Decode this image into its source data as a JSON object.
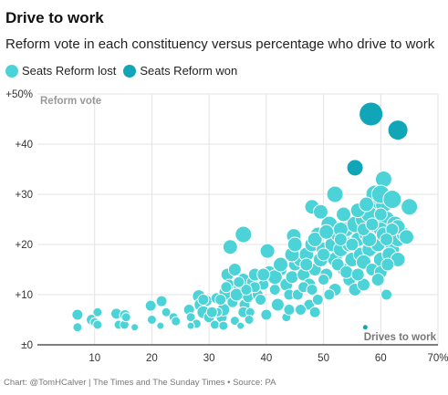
{
  "title": "Drive to work",
  "subtitle": "Reform vote in each constituency versus percentage who drive to work",
  "credit": "Chart: @TomHCalver | The Times and The Sunday Times • Source: PA",
  "colors": {
    "lost": "#4cd3d7",
    "won": "#10a6b8",
    "lost_stroke": "#ffffff",
    "grid": "#e3e3e3",
    "axis": "#333333"
  },
  "chart_data": {
    "type": "scatter",
    "ylabel": "Reform vote",
    "xlabel": "Drives to work",
    "xlim": [
      0,
      70
    ],
    "ylim": [
      0,
      50
    ],
    "xticks": [
      10,
      20,
      30,
      40,
      50,
      60,
      70
    ],
    "xtick_labels": [
      "10",
      "20",
      "30",
      "40",
      "50",
      "60",
      "70%"
    ],
    "yticks": [
      0,
      10,
      20,
      30,
      40,
      50
    ],
    "ytick_labels": [
      "±0",
      "+10",
      "+20",
      "+30",
      "+40",
      "+50%"
    ],
    "grid": "both",
    "legend_position": "top-left",
    "series": [
      {
        "name": "Seats Reform lost",
        "points": [
          [
            7,
            6,
            6
          ],
          [
            7,
            3.5,
            5
          ],
          [
            9.5,
            5,
            6
          ],
          [
            10,
            4.5,
            5
          ],
          [
            10.5,
            4,
            5
          ],
          [
            10.5,
            6.5,
            5
          ],
          [
            13.8,
            6.2,
            6
          ],
          [
            14.2,
            4,
            5
          ],
          [
            15.3,
            5.9,
            6
          ],
          [
            15.2,
            4,
            5
          ],
          [
            15.5,
            5.5,
            5
          ],
          [
            17,
            3.5,
            4
          ],
          [
            19.8,
            7.8,
            6
          ],
          [
            20,
            5,
            5
          ],
          [
            21.5,
            3.8,
            4
          ],
          [
            21.7,
            8.7,
            6
          ],
          [
            22.5,
            6.5,
            5
          ],
          [
            23.8,
            5.5,
            5
          ],
          [
            24.2,
            4.7,
            5
          ],
          [
            26.5,
            7,
            6
          ],
          [
            26.8,
            5.5,
            5
          ],
          [
            27.8,
            4.2,
            5
          ],
          [
            28.2,
            9.7,
            7
          ],
          [
            28.5,
            8,
            7
          ],
          [
            29,
            6.5,
            7
          ],
          [
            29.6,
            8.8,
            6
          ],
          [
            30,
            5.5,
            6
          ],
          [
            31,
            4,
            5
          ],
          [
            31.3,
            9.3,
            6
          ],
          [
            32.2,
            5.5,
            6
          ],
          [
            32.5,
            3.8,
            5
          ],
          [
            32.5,
            7,
            7
          ],
          [
            33,
            10.4,
            8
          ],
          [
            33.2,
            14,
            7
          ],
          [
            33.5,
            12,
            6
          ],
          [
            34.1,
            8.5,
            6
          ],
          [
            34.5,
            4.8,
            5
          ],
          [
            35.2,
            11.5,
            6
          ],
          [
            36,
            13,
            7
          ],
          [
            34.5,
            15,
            7
          ],
          [
            34.8,
            10,
            7
          ],
          [
            36.2,
            8,
            6
          ],
          [
            36.8,
            9.5,
            6
          ],
          [
            37.5,
            12.5,
            6
          ],
          [
            38,
            14,
            7
          ],
          [
            38.5,
            10,
            6
          ],
          [
            39.5,
            12,
            6
          ],
          [
            40.5,
            14.5,
            7
          ],
          [
            41.5,
            11,
            6
          ],
          [
            42.5,
            15,
            7
          ],
          [
            43.5,
            12,
            7
          ],
          [
            44,
            10,
            6
          ],
          [
            44.5,
            13.5,
            7
          ],
          [
            45,
            16,
            7
          ],
          [
            46,
            17,
            8
          ],
          [
            46.5,
            14,
            7
          ],
          [
            47,
            18,
            8
          ],
          [
            47.5,
            12,
            7
          ],
          [
            48,
            20,
            8
          ],
          [
            48.5,
            15,
            7
          ],
          [
            49,
            22,
            8
          ],
          [
            49.5,
            17,
            8
          ],
          [
            50,
            19,
            8
          ],
          [
            50.5,
            14,
            7
          ],
          [
            51,
            24,
            9
          ],
          [
            51.5,
            20,
            8
          ],
          [
            52,
            17,
            8
          ],
          [
            52.5,
            22,
            8
          ],
          [
            53,
            19,
            8
          ],
          [
            53.5,
            15,
            7
          ],
          [
            54,
            23,
            8
          ],
          [
            54.5,
            20,
            8
          ],
          [
            55,
            17,
            8
          ],
          [
            55.5,
            24,
            9
          ],
          [
            56,
            21,
            8
          ],
          [
            56.5,
            18,
            8
          ],
          [
            57,
            25,
            9
          ],
          [
            57.5,
            22,
            8
          ],
          [
            58,
            19,
            8
          ],
          [
            58.5,
            27,
            9
          ],
          [
            59,
            24,
            9
          ],
          [
            59.5,
            20,
            8
          ],
          [
            60,
            17,
            8
          ],
          [
            60.5,
            28,
            9
          ],
          [
            61,
            25,
            9
          ],
          [
            61.5,
            22,
            8
          ],
          [
            62,
            19,
            8
          ],
          [
            62.5,
            24,
            9
          ],
          [
            63,
            21,
            8
          ],
          [
            64,
            22,
            8
          ],
          [
            65,
            27.5,
            9
          ],
          [
            60,
            23,
            8
          ],
          [
            59,
            30,
            10
          ],
          [
            58,
            26,
            9
          ],
          [
            60.5,
            33,
            9
          ],
          [
            60.5,
            22,
            8
          ],
          [
            60,
            30,
            10
          ],
          [
            62,
            29,
            10
          ],
          [
            48,
            27.5,
            8
          ],
          [
            48.5,
            21,
            8
          ],
          [
            44.8,
            21.7,
            8
          ],
          [
            33.7,
            19.5,
            8
          ],
          [
            36,
            22,
            9
          ],
          [
            40.2,
            18.7,
            8
          ],
          [
            49.5,
            26.5,
            8
          ],
          [
            52,
            30,
            9
          ],
          [
            53,
            23,
            8
          ],
          [
            56,
            26.8,
            8
          ],
          [
            57.5,
            28,
            8
          ],
          [
            41.5,
            13.5,
            8
          ],
          [
            42.5,
            16,
            8
          ],
          [
            44.5,
            18,
            8
          ],
          [
            45.5,
            10,
            6
          ],
          [
            46.5,
            11.5,
            6
          ],
          [
            47.5,
            8,
            6
          ],
          [
            43.5,
            5.5,
            5
          ],
          [
            46,
            7,
            6
          ],
          [
            39,
            9,
            6
          ],
          [
            38,
            11.5,
            6
          ],
          [
            36,
            6.5,
            6
          ],
          [
            36.5,
            11,
            6
          ],
          [
            37.2,
            6.5,
            5
          ],
          [
            33,
            11.5,
            6
          ],
          [
            31.5,
            6.5,
            5
          ],
          [
            32,
            9,
            6
          ],
          [
            29,
            9,
            6
          ],
          [
            50,
            13,
            6
          ],
          [
            54.5,
            13,
            7
          ],
          [
            57,
            16.5,
            8
          ],
          [
            58.5,
            15,
            7
          ],
          [
            60,
            14.5,
            7
          ],
          [
            61.5,
            18,
            8
          ],
          [
            63,
            23.5,
            8
          ],
          [
            64.5,
            21.5,
            8
          ],
          [
            63,
            17,
            8
          ],
          [
            49,
            9,
            6
          ],
          [
            52,
            11,
            7
          ],
          [
            55.5,
            11,
            7
          ],
          [
            57,
            12,
            7
          ],
          [
            59.5,
            13,
            7
          ],
          [
            61,
            10,
            6
          ],
          [
            61.2,
            16,
            7
          ],
          [
            52.5,
            16,
            7
          ],
          [
            54,
            14.5,
            7
          ],
          [
            47,
            16,
            7
          ],
          [
            45,
            20,
            8
          ],
          [
            50.5,
            22.5,
            8
          ],
          [
            56,
            14,
            7
          ],
          [
            53.5,
            26,
            8
          ],
          [
            58,
            21,
            8
          ],
          [
            39.5,
            14,
            7
          ],
          [
            35.2,
            12.5,
            6
          ],
          [
            35.5,
            3.8,
            4
          ],
          [
            48.5,
            6.5,
            6
          ],
          [
            51,
            10,
            6
          ],
          [
            26.8,
            3.8,
            4
          ],
          [
            30.5,
            6.5,
            6
          ],
          [
            37,
            5,
            5
          ],
          [
            40,
            6,
            6
          ],
          [
            42,
            8,
            7
          ],
          [
            44,
            7,
            6
          ],
          [
            48,
            11,
            6
          ],
          [
            50,
            18,
            7
          ],
          [
            53,
            21,
            7
          ],
          [
            55,
            20,
            7
          ],
          [
            57,
            23,
            7
          ],
          [
            58.5,
            24,
            7
          ],
          [
            60,
            26,
            7
          ],
          [
            62,
            23,
            7
          ],
          [
            61,
            21,
            7
          ]
        ]
      },
      {
        "name": "Seats Reform won",
        "points": [
          [
            58.3,
            46,
            13
          ],
          [
            63,
            42.8,
            11
          ],
          [
            55.5,
            35.3,
            9
          ],
          [
            57.3,
            3.5,
            3
          ]
        ]
      }
    ]
  }
}
